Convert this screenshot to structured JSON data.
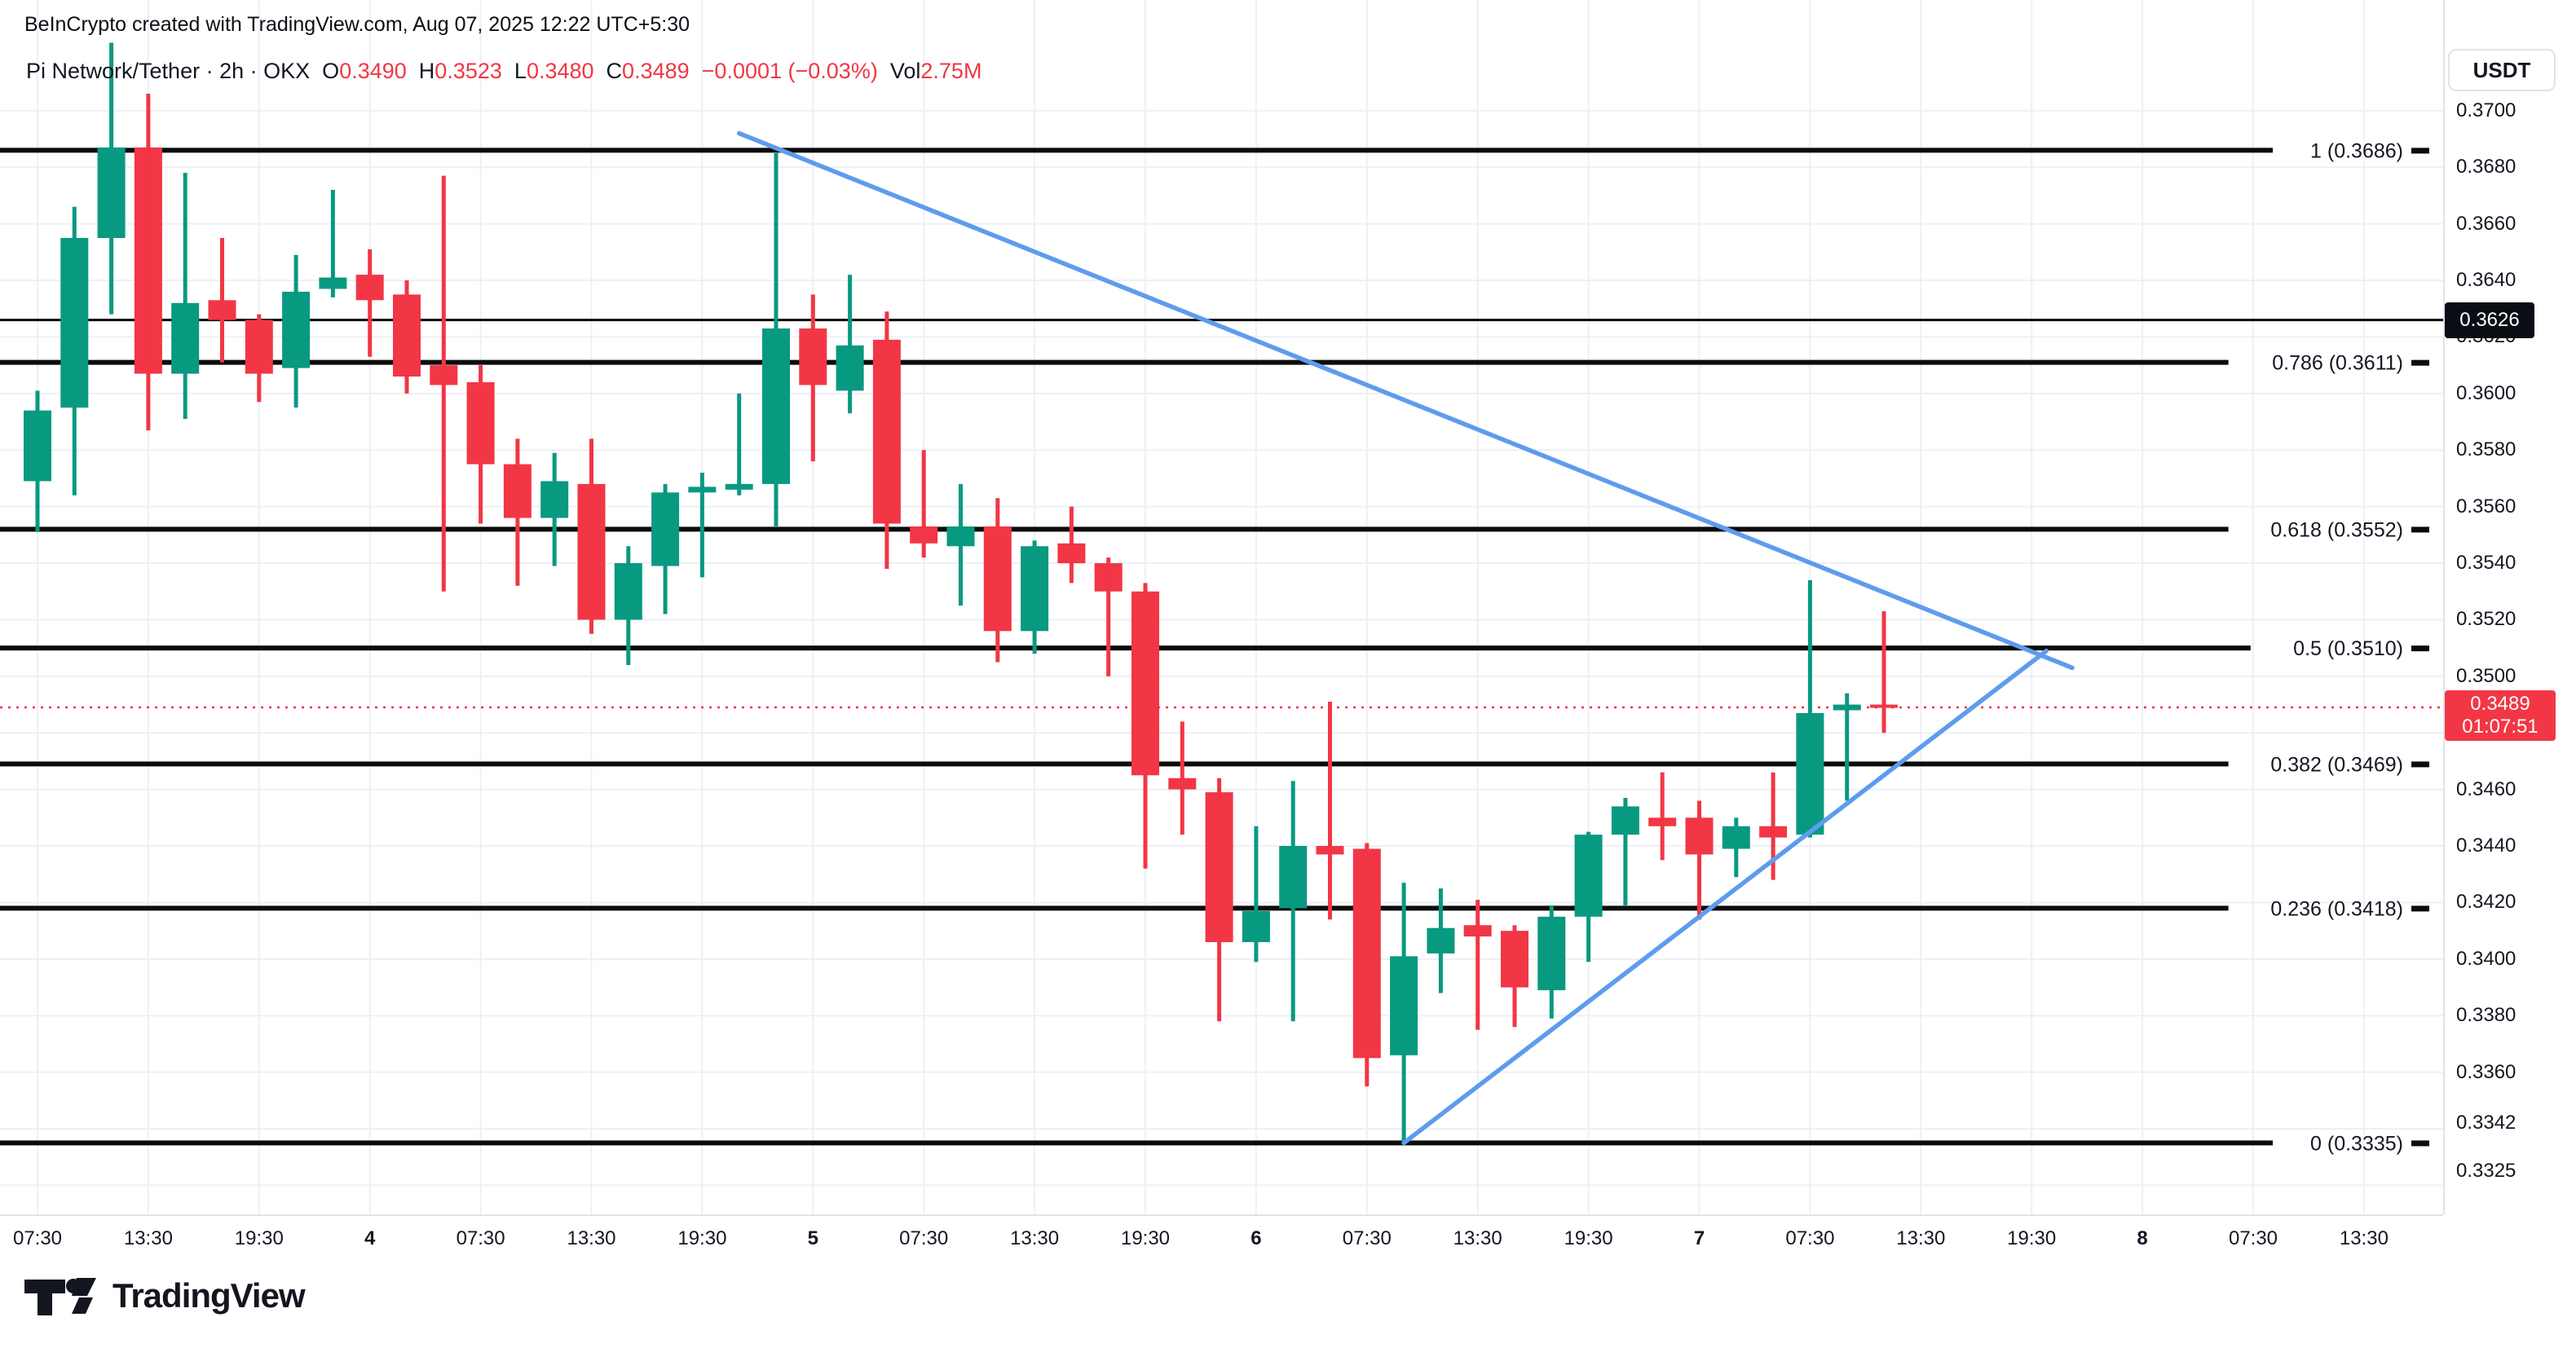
{
  "watermark": {
    "text": "BeInCrypto created with TradingView.com, Aug 07, 2025 12:22 UTC+5:30"
  },
  "legend": {
    "symbol": "Pi Network/Tether",
    "separator": " · ",
    "timeframe": "2h",
    "exchange": "OKX",
    "o_label": "O",
    "o_value": "0.3490",
    "h_label": "H",
    "h_value": "0.3523",
    "l_label": "L",
    "l_value": "0.3480",
    "c_label": "C",
    "c_value": "0.3489",
    "change": "−0.0001 (−0.03%)",
    "vol_label": "Vol",
    "vol_value": "2.75M"
  },
  "axis": {
    "currency": "USDT",
    "ticks": [
      {
        "label": "0.3700",
        "price": 0.37
      },
      {
        "label": "0.3680",
        "price": 0.368
      },
      {
        "label": "0.3660",
        "price": 0.366
      },
      {
        "label": "0.3640",
        "price": 0.364
      },
      {
        "label": "0.3620",
        "price": 0.362
      },
      {
        "label": "0.3600",
        "price": 0.36
      },
      {
        "label": "0.3580",
        "price": 0.358
      },
      {
        "label": "0.3560",
        "price": 0.356
      },
      {
        "label": "0.3540",
        "price": 0.354
      },
      {
        "label": "0.3520",
        "price": 0.352
      },
      {
        "label": "0.3500",
        "price": 0.35
      },
      {
        "label": "0.3460",
        "price": 0.346
      },
      {
        "label": "0.3440",
        "price": 0.344
      },
      {
        "label": "0.3420",
        "price": 0.342
      },
      {
        "label": "0.3400",
        "price": 0.34
      },
      {
        "label": "0.3380",
        "price": 0.338
      },
      {
        "label": "0.3360",
        "price": 0.336
      },
      {
        "label": "0.3342",
        "price": 0.3342
      },
      {
        "label": "0.3325",
        "price": 0.3325
      }
    ],
    "level_badge": {
      "price": "0.3626"
    },
    "price_badge": {
      "price": "0.3489",
      "countdown": "01:07:51"
    }
  },
  "xaxis": {
    "labels": [
      {
        "text": "07:30",
        "bold": false
      },
      {
        "text": "13:30",
        "bold": false
      },
      {
        "text": "19:30",
        "bold": false
      },
      {
        "text": "4",
        "bold": true
      },
      {
        "text": "07:30",
        "bold": false
      },
      {
        "text": "13:30",
        "bold": false
      },
      {
        "text": "19:30",
        "bold": false
      },
      {
        "text": "5",
        "bold": true
      },
      {
        "text": "07:30",
        "bold": false
      },
      {
        "text": "13:30",
        "bold": false
      },
      {
        "text": "19:30",
        "bold": false
      },
      {
        "text": "6",
        "bold": true
      },
      {
        "text": "07:30",
        "bold": false
      },
      {
        "text": "13:30",
        "bold": false
      },
      {
        "text": "19:30",
        "bold": false
      },
      {
        "text": "7",
        "bold": true
      },
      {
        "text": "07:30",
        "bold": false
      },
      {
        "text": "13:30",
        "bold": false
      },
      {
        "text": "19:30",
        "bold": false
      },
      {
        "text": "8",
        "bold": true
      },
      {
        "text": "07:30",
        "bold": false
      },
      {
        "text": "13:30",
        "bold": false
      }
    ]
  },
  "logo": {
    "word": "TradingView"
  },
  "colors": {
    "up": "#089981",
    "down": "#f23645",
    "trendline": "#5d9cee",
    "fib_line": "#0c0c0c",
    "grid": "#eef0f6",
    "dotted_price": "#f23645",
    "text": "#131722"
  },
  "chart_data": {
    "type": "candlestick",
    "title": "Pi Network/Tether · 2h · OKX",
    "ylabel": "USDT",
    "ylim": [
      0.332,
      0.3745
    ],
    "grid": true,
    "price_step_grid": 0.002,
    "current_price": 0.3489,
    "horizontal_level": 0.3626,
    "fib_levels": [
      {
        "level": "1",
        "price": 0.3686,
        "label": "1 (0.3686)"
      },
      {
        "level": "0.786",
        "price": 0.3611,
        "label": "0.786 (0.3611)"
      },
      {
        "level": "0.618",
        "price": 0.3552,
        "label": "0.618 (0.3552)"
      },
      {
        "level": "0.5",
        "price": 0.351,
        "label": "0.5 (0.3510)"
      },
      {
        "level": "0.382",
        "price": 0.3469,
        "label": "0.382 (0.3469)"
      },
      {
        "level": "0.236",
        "price": 0.3418,
        "label": "0.236 (0.3418)"
      },
      {
        "level": "0",
        "price": 0.3335,
        "label": "0 (0.3335)"
      }
    ],
    "trendlines": [
      {
        "name": "descending-resistance",
        "from_bar": 19.0,
        "from_price": 0.3692,
        "to_bar": 55.1,
        "to_price": 0.3503
      },
      {
        "name": "ascending-support",
        "from_bar": 37.0,
        "from_price": 0.3335,
        "to_bar": 54.4,
        "to_price": 0.3509
      }
    ],
    "candles": [
      {
        "o": 0.3569,
        "h": 0.3601,
        "l": 0.3551,
        "c": 0.3594
      },
      {
        "o": 0.3595,
        "h": 0.3666,
        "l": 0.3564,
        "c": 0.3655
      },
      {
        "o": 0.3655,
        "h": 0.3724,
        "l": 0.3628,
        "c": 0.3687
      },
      {
        "o": 0.3687,
        "h": 0.3706,
        "l": 0.3587,
        "c": 0.3607
      },
      {
        "o": 0.3607,
        "h": 0.3678,
        "l": 0.3591,
        "c": 0.3632
      },
      {
        "o": 0.3633,
        "h": 0.3655,
        "l": 0.3611,
        "c": 0.3626
      },
      {
        "o": 0.3626,
        "h": 0.3628,
        "l": 0.3597,
        "c": 0.3607
      },
      {
        "o": 0.3609,
        "h": 0.3649,
        "l": 0.3595,
        "c": 0.3636
      },
      {
        "o": 0.3637,
        "h": 0.3672,
        "l": 0.3634,
        "c": 0.3641
      },
      {
        "o": 0.3642,
        "h": 0.3651,
        "l": 0.3613,
        "c": 0.3633
      },
      {
        "o": 0.3635,
        "h": 0.364,
        "l": 0.36,
        "c": 0.3606
      },
      {
        "o": 0.361,
        "h": 0.3677,
        "l": 0.353,
        "c": 0.3603
      },
      {
        "o": 0.3604,
        "h": 0.361,
        "l": 0.3554,
        "c": 0.3575
      },
      {
        "o": 0.3575,
        "h": 0.3584,
        "l": 0.3532,
        "c": 0.3556
      },
      {
        "o": 0.3556,
        "h": 0.3579,
        "l": 0.3539,
        "c": 0.3569
      },
      {
        "o": 0.3568,
        "h": 0.3584,
        "l": 0.3515,
        "c": 0.352
      },
      {
        "o": 0.352,
        "h": 0.3546,
        "l": 0.3504,
        "c": 0.354
      },
      {
        "o": 0.3539,
        "h": 0.3568,
        "l": 0.3522,
        "c": 0.3565
      },
      {
        "o": 0.3565,
        "h": 0.3572,
        "l": 0.3535,
        "c": 0.3567
      },
      {
        "o": 0.3566,
        "h": 0.36,
        "l": 0.3564,
        "c": 0.3568
      },
      {
        "o": 0.3568,
        "h": 0.3685,
        "l": 0.3553,
        "c": 0.3623
      },
      {
        "o": 0.3623,
        "h": 0.3635,
        "l": 0.3576,
        "c": 0.3603
      },
      {
        "o": 0.3601,
        "h": 0.3642,
        "l": 0.3593,
        "c": 0.3617
      },
      {
        "o": 0.3619,
        "h": 0.3629,
        "l": 0.3538,
        "c": 0.3554
      },
      {
        "o": 0.3553,
        "h": 0.358,
        "l": 0.3542,
        "c": 0.3547
      },
      {
        "o": 0.3546,
        "h": 0.3568,
        "l": 0.3525,
        "c": 0.3553
      },
      {
        "o": 0.3553,
        "h": 0.3563,
        "l": 0.3505,
        "c": 0.3516
      },
      {
        "o": 0.3516,
        "h": 0.3548,
        "l": 0.3508,
        "c": 0.3546
      },
      {
        "o": 0.3547,
        "h": 0.356,
        "l": 0.3533,
        "c": 0.354
      },
      {
        "o": 0.354,
        "h": 0.3542,
        "l": 0.35,
        "c": 0.353
      },
      {
        "o": 0.353,
        "h": 0.3533,
        "l": 0.3432,
        "c": 0.3465
      },
      {
        "o": 0.3464,
        "h": 0.3484,
        "l": 0.3444,
        "c": 0.346
      },
      {
        "o": 0.3459,
        "h": 0.3464,
        "l": 0.3378,
        "c": 0.3406
      },
      {
        "o": 0.3406,
        "h": 0.3447,
        "l": 0.3399,
        "c": 0.3417
      },
      {
        "o": 0.3418,
        "h": 0.3463,
        "l": 0.3378,
        "c": 0.344
      },
      {
        "o": 0.344,
        "h": 0.3491,
        "l": 0.3414,
        "c": 0.3437
      },
      {
        "o": 0.3439,
        "h": 0.3441,
        "l": 0.3355,
        "c": 0.3365
      },
      {
        "o": 0.3366,
        "h": 0.3427,
        "l": 0.3335,
        "c": 0.3401
      },
      {
        "o": 0.3402,
        "h": 0.3425,
        "l": 0.3388,
        "c": 0.3411
      },
      {
        "o": 0.3412,
        "h": 0.3421,
        "l": 0.3375,
        "c": 0.3408
      },
      {
        "o": 0.341,
        "h": 0.3412,
        "l": 0.3376,
        "c": 0.339
      },
      {
        "o": 0.3389,
        "h": 0.3419,
        "l": 0.3379,
        "c": 0.3415
      },
      {
        "o": 0.3415,
        "h": 0.3445,
        "l": 0.3399,
        "c": 0.3444
      },
      {
        "o": 0.3444,
        "h": 0.3457,
        "l": 0.3419,
        "c": 0.3454
      },
      {
        "o": 0.345,
        "h": 0.3466,
        "l": 0.3435,
        "c": 0.3447
      },
      {
        "o": 0.345,
        "h": 0.3456,
        "l": 0.3414,
        "c": 0.3437
      },
      {
        "o": 0.3439,
        "h": 0.345,
        "l": 0.3429,
        "c": 0.3447
      },
      {
        "o": 0.3447,
        "h": 0.3466,
        "l": 0.3428,
        "c": 0.3443
      },
      {
        "o": 0.3444,
        "h": 0.3534,
        "l": 0.3443,
        "c": 0.3487
      },
      {
        "o": 0.3488,
        "h": 0.3494,
        "l": 0.3456,
        "c": 0.349
      },
      {
        "o": 0.349,
        "h": 0.3523,
        "l": 0.348,
        "c": 0.3489
      }
    ]
  }
}
